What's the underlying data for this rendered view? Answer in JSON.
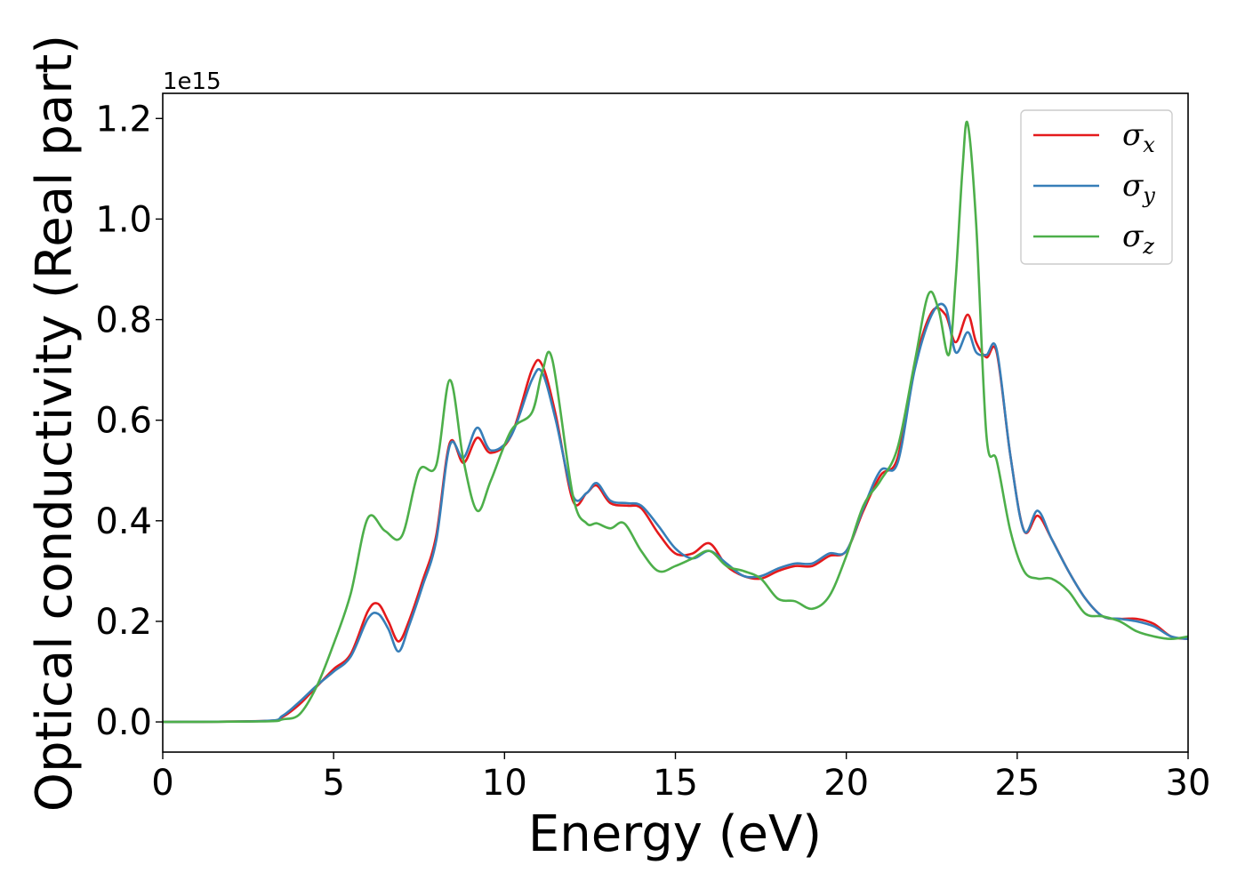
{
  "chart_data": {
    "type": "line",
    "title": "",
    "xlabel": "Energy (eV)",
    "ylabel": "Optical conductivity (Real part)",
    "y_offset_label": "1e15",
    "xlim": [
      0,
      30
    ],
    "ylim": [
      -0.06,
      1.25
    ],
    "xticks": [
      0,
      5,
      10,
      15,
      20,
      25,
      30
    ],
    "xtick_labels": [
      "0",
      "5",
      "10",
      "15",
      "20",
      "25",
      "30"
    ],
    "yticks": [
      0.0,
      0.2,
      0.4,
      0.6,
      0.8,
      1.0,
      1.2
    ],
    "ytick_labels": [
      "0.0",
      "0.2",
      "0.4",
      "0.6",
      "0.8",
      "1.0",
      "1.2"
    ],
    "grid": false,
    "legend_position": "top-right",
    "series": [
      {
        "name": "σx",
        "name_base": "σ",
        "name_sub": "x",
        "color": "#e41a1c",
        "x": [
          0,
          3,
          3.5,
          4,
          4.5,
          5,
          5.5,
          6,
          6.3,
          6.6,
          6.9,
          7.2,
          7.6,
          8,
          8.4,
          8.8,
          9.2,
          9.6,
          10.2,
          10.8,
          11.1,
          11.5,
          12,
          12.4,
          12.7,
          13.1,
          13.6,
          14,
          14.5,
          15,
          15.5,
          16,
          16.5,
          17,
          17.5,
          18,
          18.5,
          19,
          19.5,
          20,
          20.5,
          21,
          21.5,
          22,
          22.5,
          22.9,
          23.2,
          23.55,
          23.8,
          24.1,
          24.4,
          24.8,
          25.2,
          25.6,
          26,
          26.5,
          27,
          27.5,
          28,
          28.5,
          29,
          29.5,
          30
        ],
        "y": [
          0.0,
          0.002,
          0.01,
          0.035,
          0.07,
          0.105,
          0.135,
          0.22,
          0.235,
          0.2,
          0.16,
          0.2,
          0.28,
          0.37,
          0.555,
          0.515,
          0.565,
          0.535,
          0.57,
          0.7,
          0.71,
          0.61,
          0.44,
          0.455,
          0.47,
          0.435,
          0.43,
          0.425,
          0.375,
          0.335,
          0.335,
          0.355,
          0.31,
          0.29,
          0.285,
          0.3,
          0.31,
          0.31,
          0.33,
          0.34,
          0.42,
          0.49,
          0.525,
          0.71,
          0.815,
          0.81,
          0.755,
          0.81,
          0.755,
          0.725,
          0.735,
          0.53,
          0.38,
          0.41,
          0.365,
          0.3,
          0.245,
          0.21,
          0.205,
          0.205,
          0.195,
          0.17,
          0.165
        ]
      },
      {
        "name": "σy",
        "name_base": "σ",
        "name_sub": "y",
        "color": "#377eb8",
        "x": [
          0,
          3,
          3.5,
          4,
          4.5,
          5,
          5.5,
          6,
          6.3,
          6.6,
          6.9,
          7.2,
          7.6,
          8,
          8.4,
          8.8,
          9.2,
          9.6,
          10.2,
          10.8,
          11.1,
          11.5,
          12,
          12.4,
          12.7,
          13.1,
          13.6,
          14,
          14.5,
          15,
          15.5,
          16,
          16.5,
          17,
          17.5,
          18,
          18.5,
          19,
          19.5,
          20,
          20.5,
          21,
          21.5,
          22,
          22.5,
          22.9,
          23.2,
          23.55,
          23.8,
          24.1,
          24.4,
          24.8,
          25.2,
          25.6,
          26,
          26.5,
          27,
          27.5,
          28,
          28.5,
          29,
          29.5,
          30
        ],
        "y": [
          0.0,
          0.002,
          0.012,
          0.04,
          0.072,
          0.1,
          0.13,
          0.205,
          0.215,
          0.185,
          0.14,
          0.19,
          0.27,
          0.36,
          0.55,
          0.525,
          0.585,
          0.54,
          0.57,
          0.68,
          0.695,
          0.6,
          0.45,
          0.455,
          0.475,
          0.44,
          0.435,
          0.43,
          0.39,
          0.345,
          0.325,
          0.34,
          0.315,
          0.29,
          0.29,
          0.305,
          0.315,
          0.315,
          0.335,
          0.34,
          0.425,
          0.5,
          0.515,
          0.7,
          0.81,
          0.825,
          0.735,
          0.775,
          0.735,
          0.73,
          0.74,
          0.53,
          0.38,
          0.42,
          0.365,
          0.3,
          0.245,
          0.21,
          0.205,
          0.2,
          0.19,
          0.17,
          0.165
        ]
      },
      {
        "name": "σz",
        "name_base": "σ",
        "name_sub": "z",
        "color": "#4daf4a",
        "x": [
          0,
          3,
          3.5,
          4,
          4.5,
          5,
          5.5,
          6,
          6.5,
          7,
          7.5,
          8,
          8.4,
          8.8,
          9.2,
          9.6,
          10.2,
          10.8,
          11.1,
          11.4,
          12,
          12.4,
          12.7,
          13.1,
          13.5,
          14,
          14.5,
          15,
          15.5,
          16,
          16.5,
          17,
          17.5,
          18,
          18.5,
          19,
          19.5,
          20,
          20.5,
          21,
          21.5,
          22,
          22.4,
          22.7,
          23.0,
          23.2,
          23.4,
          23.55,
          23.8,
          24.1,
          24.4,
          24.8,
          25.2,
          25.6,
          26,
          26.5,
          27,
          27.5,
          28,
          28.5,
          29,
          29.5,
          30
        ],
        "y": [
          0.0,
          0.001,
          0.005,
          0.015,
          0.07,
          0.155,
          0.255,
          0.405,
          0.38,
          0.37,
          0.5,
          0.51,
          0.68,
          0.52,
          0.42,
          0.48,
          0.58,
          0.615,
          0.695,
          0.72,
          0.45,
          0.395,
          0.395,
          0.385,
          0.395,
          0.34,
          0.3,
          0.31,
          0.325,
          0.34,
          0.31,
          0.3,
          0.285,
          0.245,
          0.24,
          0.225,
          0.25,
          0.33,
          0.43,
          0.48,
          0.545,
          0.715,
          0.85,
          0.82,
          0.73,
          0.88,
          1.1,
          1.19,
          0.99,
          0.57,
          0.52,
          0.38,
          0.3,
          0.285,
          0.285,
          0.26,
          0.215,
          0.21,
          0.2,
          0.18,
          0.17,
          0.165,
          0.17
        ]
      }
    ]
  }
}
